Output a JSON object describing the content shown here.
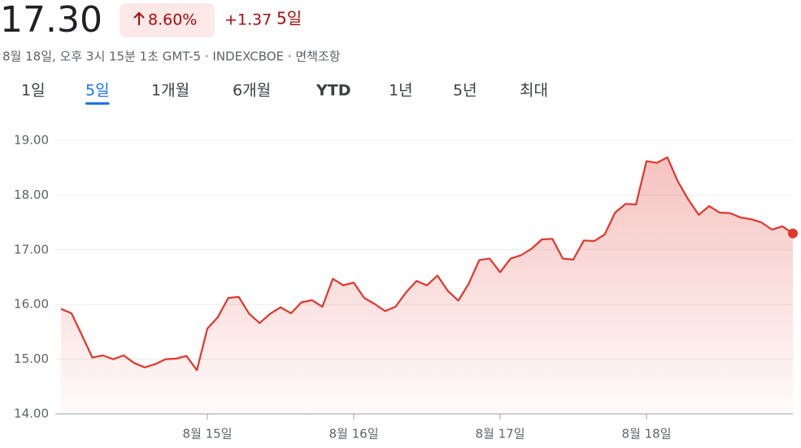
{
  "header": {
    "price": "17.30",
    "change_percent": "8.60%",
    "change": "+1.37",
    "period": "5일",
    "subtitle": "8월 18일, 오후 3시 15분 1초 GMT-5 · INDEXCBOE · 면책조항"
  },
  "tabs": [
    "1일",
    "5일",
    "1개월",
    "6개월",
    "YTD",
    "1년",
    "5년",
    "최대"
  ],
  "active_tab": 1,
  "chart_data": {
    "type": "line",
    "color": "#e0362c",
    "grid": true,
    "values": [
      15.92,
      15.84,
      15.44,
      15.03,
      15.07,
      15.0,
      15.07,
      14.93,
      14.85,
      14.91,
      15.0,
      15.01,
      15.06,
      14.8,
      15.56,
      15.77,
      16.12,
      16.14,
      15.83,
      15.66,
      15.83,
      15.95,
      15.84,
      16.04,
      16.08,
      15.96,
      16.47,
      16.35,
      16.4,
      16.12,
      16.01,
      15.88,
      15.96,
      16.22,
      16.43,
      16.35,
      16.53,
      16.25,
      16.07,
      16.38,
      16.81,
      16.84,
      16.59,
      16.84,
      16.9,
      17.02,
      17.19,
      17.2,
      16.84,
      16.82,
      17.17,
      17.16,
      17.28,
      17.68,
      17.84,
      17.83,
      18.62,
      18.59,
      18.69,
      18.25,
      17.92,
      17.64,
      17.8,
      17.68,
      17.67,
      17.59,
      17.56,
      17.5,
      17.37,
      17.43,
      17.3
    ],
    "xlim": [
      0,
      70
    ],
    "xticks": [
      {
        "value": 14,
        "label": "8월 15일"
      },
      {
        "value": 28,
        "label": "8월 16일"
      },
      {
        "value": 42,
        "label": "8월 17일"
      },
      {
        "value": 56,
        "label": "8월 18일"
      }
    ],
    "ylim": [
      14,
      19
    ],
    "yticks": [
      {
        "value": 14,
        "label": "14.00"
      },
      {
        "value": 15,
        "label": "15.00"
      },
      {
        "value": 16,
        "label": "16.00"
      },
      {
        "value": 17,
        "label": "17.00"
      },
      {
        "value": 18,
        "label": "18.00"
      },
      {
        "value": 19,
        "label": "19.00"
      }
    ]
  }
}
